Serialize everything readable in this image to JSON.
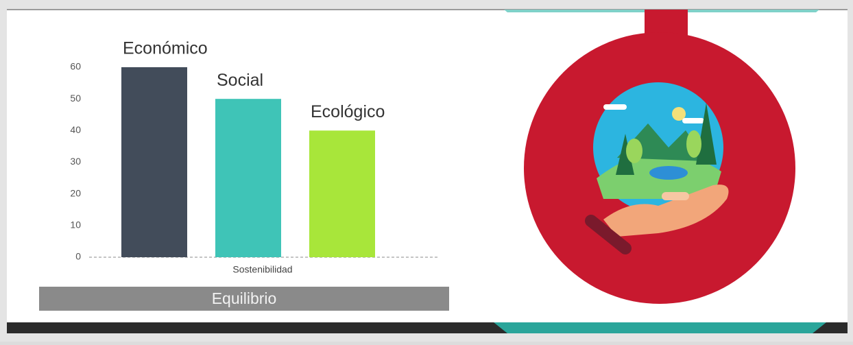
{
  "chart_data": {
    "type": "bar",
    "categories": [
      "Sostenibilidad"
    ],
    "series": [
      {
        "name": "Económico",
        "color": "#424c5a",
        "values": [
          60
        ]
      },
      {
        "name": "Social",
        "color": "#3fc4b7",
        "values": [
          50
        ]
      },
      {
        "name": "Ecológico",
        "color": "#a8e63a",
        "values": [
          40
        ]
      }
    ],
    "ylim": [
      0,
      60
    ],
    "yticks": [
      0,
      10,
      20,
      30,
      40,
      50,
      60
    ]
  },
  "banner": {
    "text": "Equilibrio"
  }
}
